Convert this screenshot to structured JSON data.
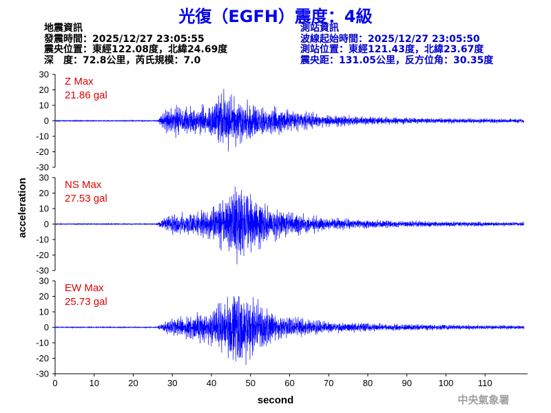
{
  "header": {
    "title": "光復（EGFH）震度：4級",
    "earthquake_info": {
      "heading": "地震資訊",
      "origin_time": "發震時間：2025/12/27 23:05:55",
      "epicenter": "震央位置：東經122.08度，北緯24.69度",
      "depth_magnitude": "深　度：72.8公里，芮氏規模：7.0"
    },
    "station_info": {
      "heading": "測站資訊",
      "wave_start": "波線起始時間：2025/12/27 23:05:50",
      "station_location": "測站位置：東經121.43度，北緯23.67度",
      "distance_azimuth": "震央距：131.05公里，反方位角：30.35度"
    }
  },
  "footer": {
    "agency": "中央氣象署"
  },
  "colors": {
    "trace": "#0000ff",
    "title": "#0000ee",
    "station_info": "#0000cc",
    "max_label": "#e00000",
    "agency": "#a0a0a0"
  },
  "chart_data": {
    "type": "line",
    "xlabel": "second",
    "ylabel": "acceleration",
    "xlim": [
      0,
      120
    ],
    "ylim": [
      -30,
      30
    ],
    "x_ticks": [
      0,
      10,
      20,
      30,
      40,
      50,
      60,
      70,
      80,
      90,
      100,
      110
    ],
    "y_ticks": [
      30,
      20,
      10,
      0,
      -10,
      -20,
      -30
    ],
    "series": [
      {
        "name": "Z Max",
        "max_value_label": "21.86 gal",
        "max_abs_gal": 21.86,
        "envelope_seconds": [
          0,
          26,
          27.5,
          29,
          35,
          40,
          43.5,
          48,
          52,
          60,
          70,
          80,
          90,
          100,
          110,
          120
        ],
        "envelope_gal": [
          0.3,
          0.3,
          4,
          9,
          8,
          10,
          18,
          13,
          10,
          6,
          3.5,
          2.5,
          2,
          1.5,
          1.4,
          1.3
        ]
      },
      {
        "name": "NS Max",
        "max_value_label": "27.53 gal",
        "max_abs_gal": 27.53,
        "envelope_seconds": [
          0,
          26,
          27.5,
          30,
          35,
          40,
          44,
          47,
          50,
          55,
          60,
          70,
          80,
          90,
          100,
          110,
          120
        ],
        "envelope_gal": [
          0.3,
          0.3,
          3,
          6,
          7,
          10,
          17,
          24,
          18,
          10,
          7,
          4,
          2.5,
          2,
          1.5,
          1.3,
          1.2
        ]
      },
      {
        "name": "EW Max",
        "max_value_label": "25.73 gal",
        "max_abs_gal": 25.73,
        "envelope_seconds": [
          0,
          26,
          27.5,
          30,
          35,
          40,
          44,
          47,
          50,
          55,
          60,
          70,
          80,
          90,
          100,
          110,
          120
        ],
        "envelope_gal": [
          0.3,
          0.3,
          3,
          5,
          7,
          10,
          18,
          24,
          18,
          10,
          6,
          3.5,
          2.5,
          2,
          1.5,
          1.3,
          1.2
        ]
      }
    ]
  }
}
